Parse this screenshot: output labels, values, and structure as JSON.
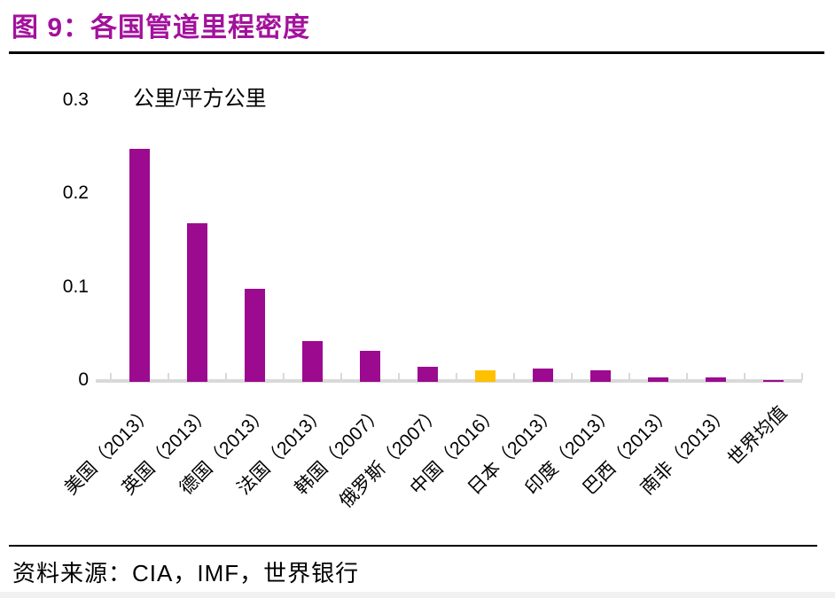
{
  "figure": {
    "title": "图 9：各国管道里程密度",
    "source_label": "资料来源：CIA，IMF，世界银行"
  },
  "chart_data": {
    "type": "bar",
    "title": "各国管道里程密度",
    "unit_label": "公里/平方公里",
    "categories": [
      "美国（2013）",
      "英国（2013）",
      "德国（2013）",
      "法国（2013）",
      "韩国（2007）",
      "俄罗斯（2007）",
      "中国（2016）",
      "日本（2013）",
      "印度（2013）",
      "巴西（2013）",
      "南非（2013）",
      "世界均值"
    ],
    "values": [
      0.25,
      0.17,
      0.1,
      0.044,
      0.033,
      0.016,
      0.012,
      0.014,
      0.012,
      0.005,
      0.005,
      0.002
    ],
    "ylabel": "公里/平方公里",
    "xlabel": "",
    "ylim": [
      0,
      0.3
    ],
    "yticks": [
      0,
      0.1,
      0.2,
      0.3
    ],
    "ytick_labels": [
      "0",
      "0.1",
      "0.2",
      "0.3"
    ],
    "highlight_index": 6,
    "grid": false,
    "legend_position": "none"
  },
  "colors": {
    "title_text": "#A3119C",
    "bar": "#9C0A90",
    "bar_highlight": "#FFC000",
    "axis": "#D9D9D9",
    "text": "#000000"
  }
}
